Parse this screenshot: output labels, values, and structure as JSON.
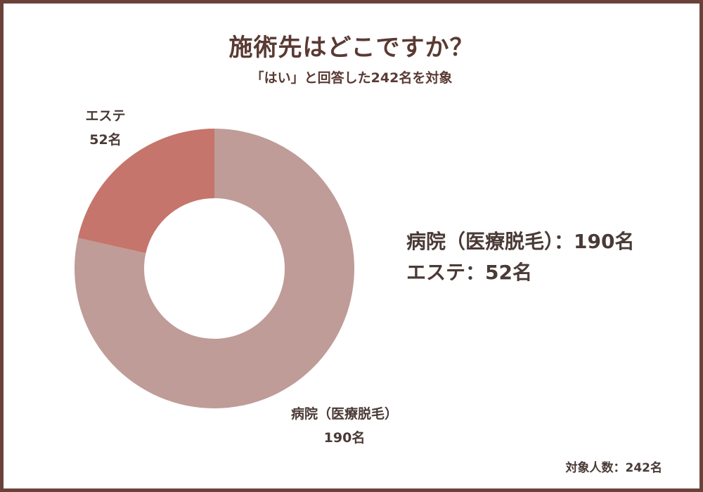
{
  "title": "施術先はどこですか？",
  "subtitle": "「はい」と回答した242名を対象",
  "chart_data": {
    "type": "pie",
    "categories": [
      "病院（医療脱毛）",
      "エステ"
    ],
    "values": [
      190,
      52
    ],
    "unit": "名",
    "colors": [
      "#bf9c97",
      "#c5756b"
    ],
    "inner_hole": true
  },
  "labels": {
    "hospital_name": "病院（医療脱毛）",
    "hospital_count": "190名",
    "este_name": "エステ",
    "este_count": "52名"
  },
  "summary": {
    "line1": "病院（医療脱毛）：190名",
    "line2": "エステ：52名"
  },
  "footer": "対象人数：242名"
}
